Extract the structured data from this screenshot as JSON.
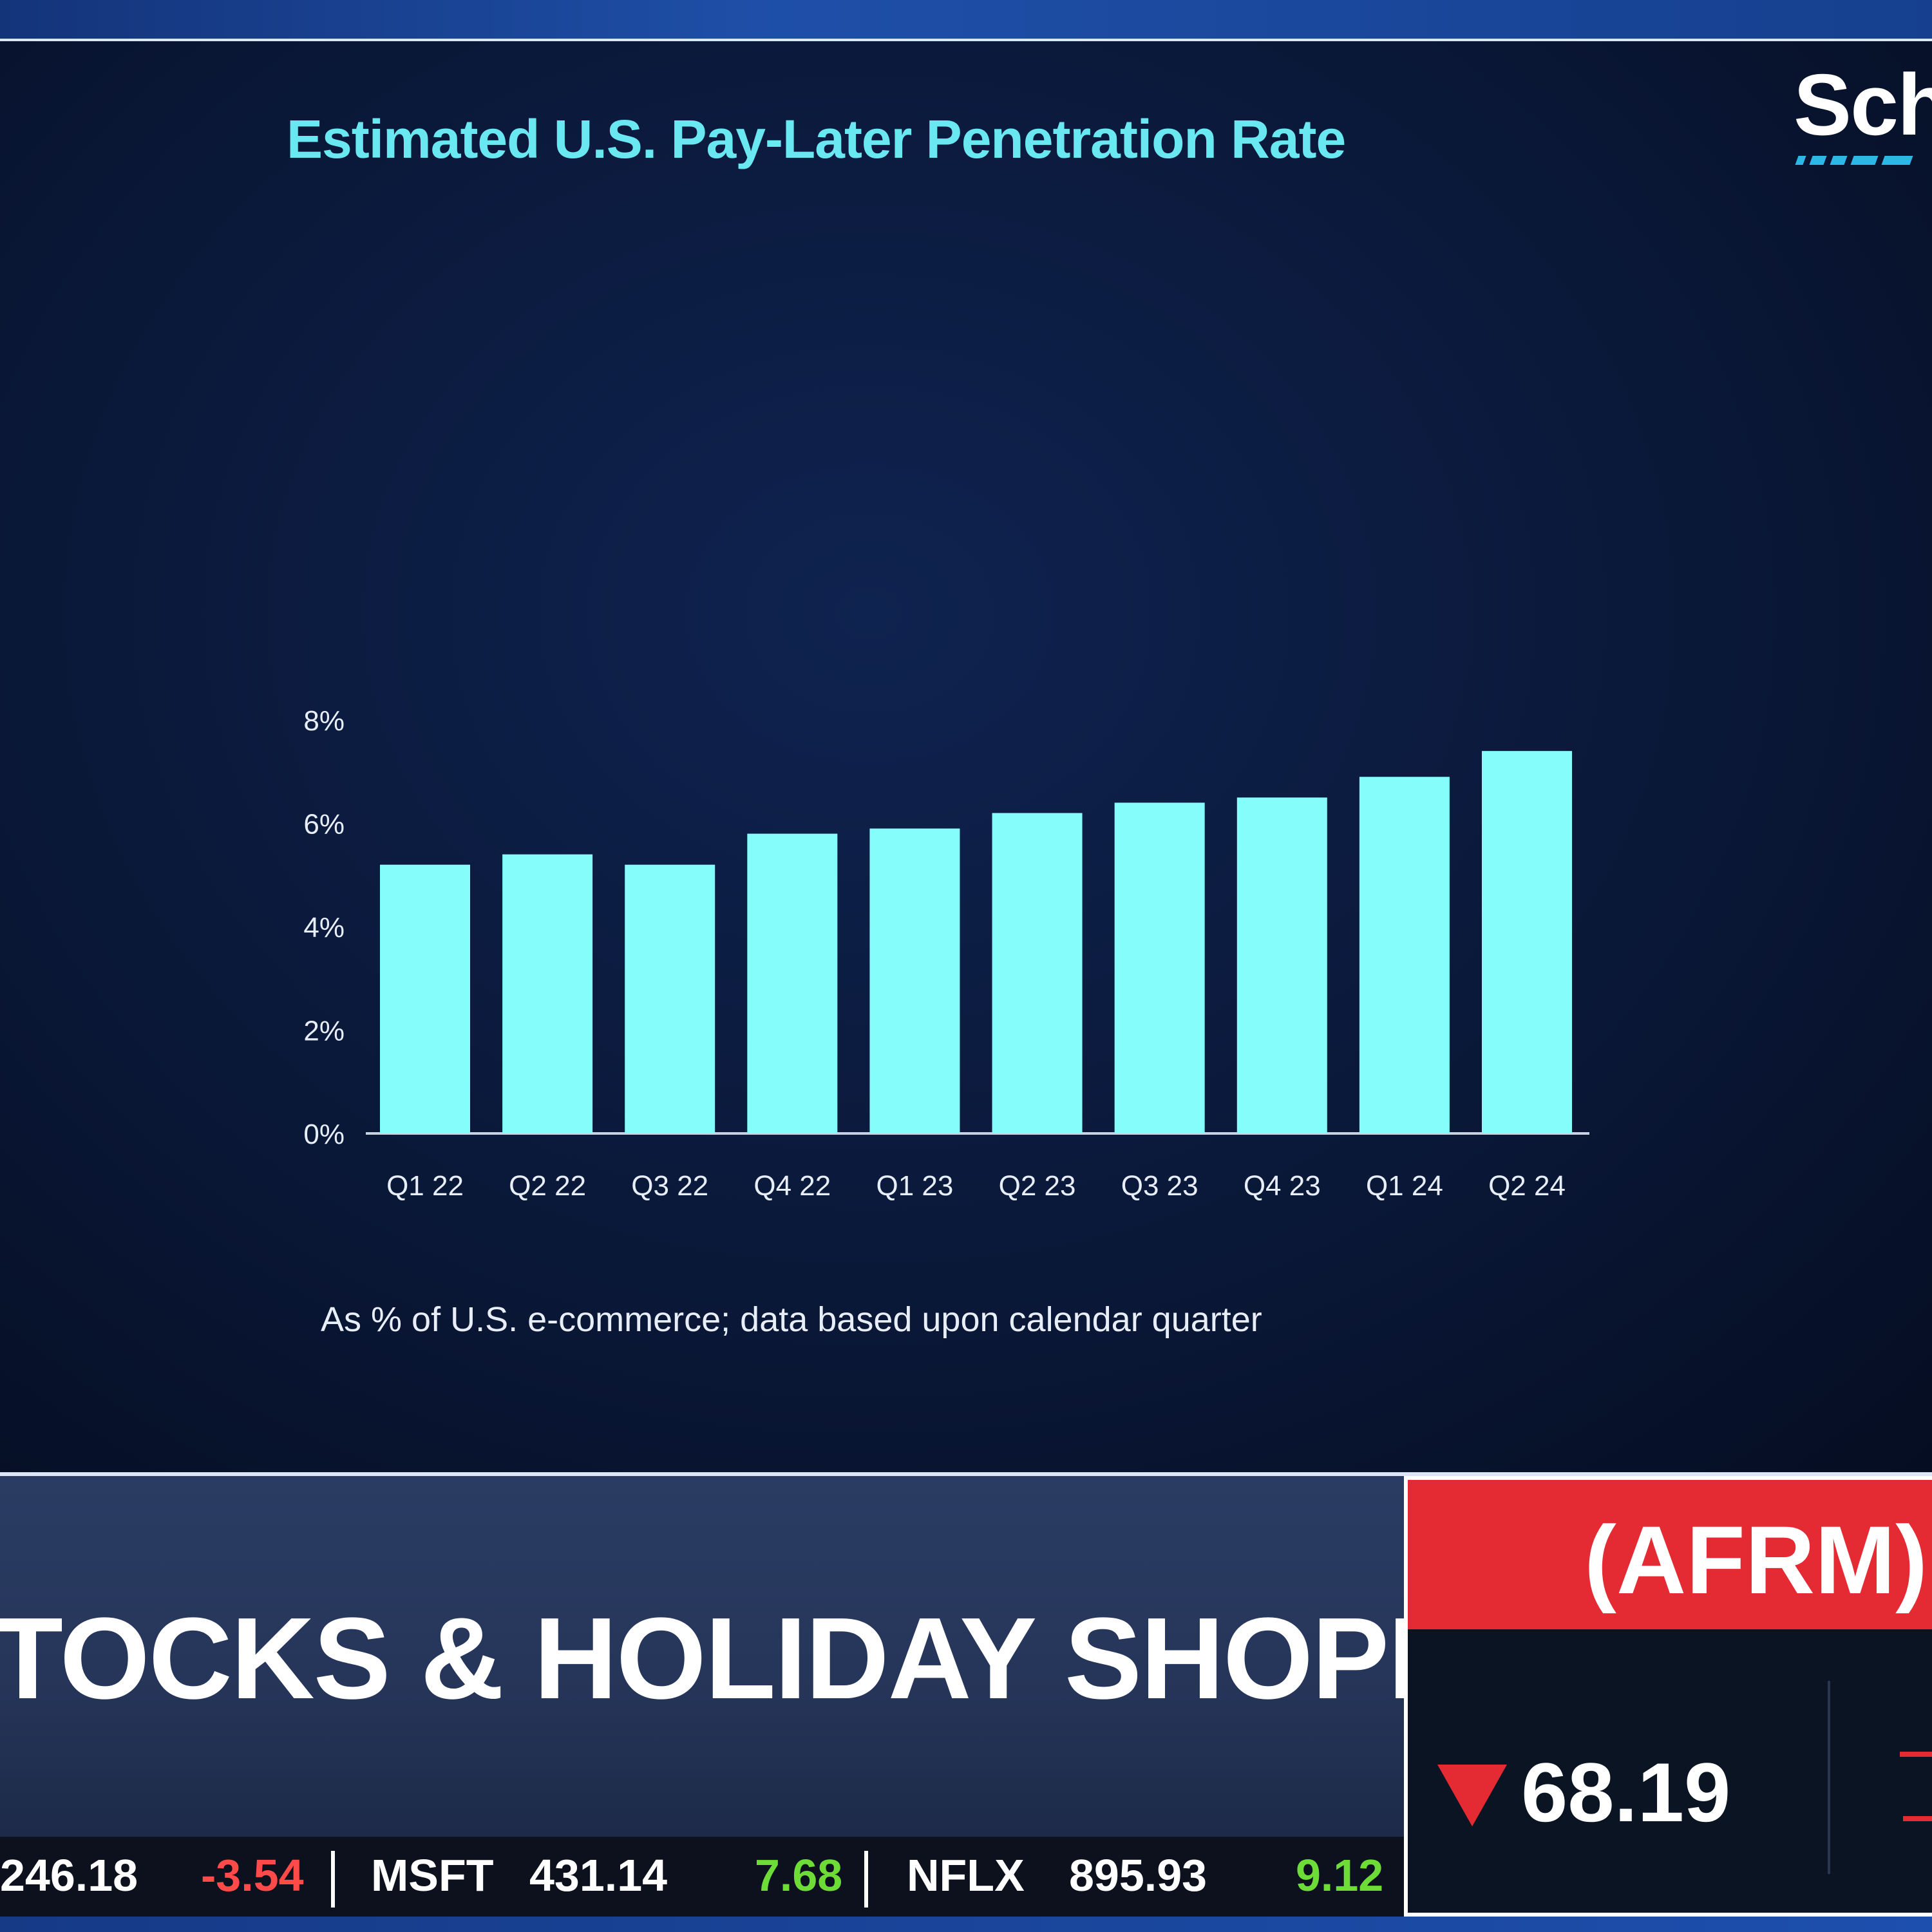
{
  "logo": {
    "text": "Sch"
  },
  "chart_data": {
    "type": "bar",
    "title": "Estimated U.S. Pay-Later Penetration Rate",
    "note": "As % of U.S. e-commerce; data based upon calendar quarter",
    "categories": [
      "Q1 22",
      "Q2 22",
      "Q3 22",
      "Q4 22",
      "Q1 23",
      "Q2 23",
      "Q3 23",
      "Q4 23",
      "Q1 24",
      "Q2 24"
    ],
    "values": [
      5.2,
      5.4,
      5.2,
      5.8,
      5.9,
      6.2,
      6.4,
      6.5,
      6.9,
      7.4
    ],
    "yticks": [
      "0%",
      "2%",
      "4%",
      "6%",
      "8%"
    ],
    "ylim": [
      0,
      8
    ],
    "grid": false,
    "color": "#84fdfb"
  },
  "headline": "TOCKS & HOLIDAY SHOPPING",
  "ticker": [
    {
      "symbol": "",
      "price": "246.18",
      "change": "-3.54",
      "direction": "down"
    },
    {
      "symbol": "MSFT",
      "price": "431.14",
      "change": "7.68",
      "direction": "up"
    },
    {
      "symbol": "NFLX",
      "price": "895.93",
      "change": "9.12",
      "direction": "up"
    }
  ],
  "stock_box": {
    "symbol": "(AFRM)",
    "price": "68.19",
    "direction": "down",
    "accent_color": "#e42b33"
  }
}
